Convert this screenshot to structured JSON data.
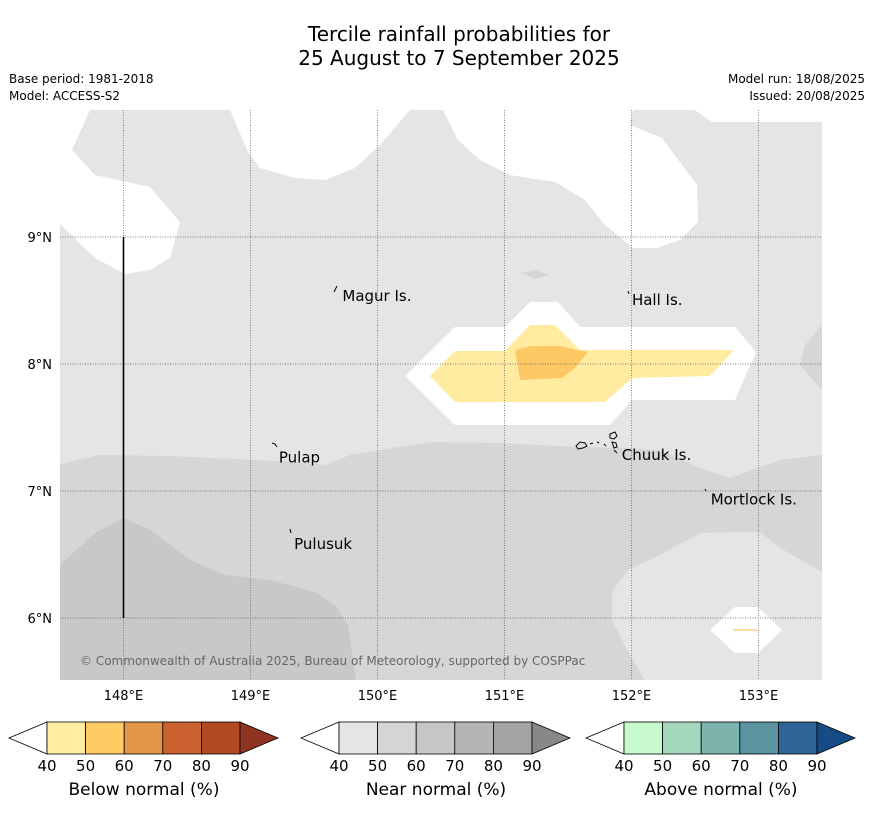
{
  "title": {
    "line1": "Tercile rainfall probabilities for",
    "line2": "25 August to 7 September 2025"
  },
  "info_left": {
    "base_period": "Base period: 1981-2018",
    "model": "Model: ACCESS-S2"
  },
  "info_right": {
    "model_run": "Model run: 18/08/2025",
    "issued": "Issued: 20/08/2025"
  },
  "map": {
    "lon_ticks": [
      "148°E",
      "149°E",
      "150°E",
      "151°E",
      "152°E",
      "153°E"
    ],
    "lat_ticks": [
      "9°N",
      "8°N",
      "7°N",
      "6°N"
    ],
    "places": [
      {
        "name": "Magur Is.",
        "lon": 149.7,
        "lat": 8.55
      },
      {
        "name": "Hall Is.",
        "lon": 151.98,
        "lat": 8.52
      },
      {
        "name": "Pulap",
        "lon": 149.2,
        "lat": 7.28
      },
      {
        "name": "Chuuk Is.",
        "lon": 151.9,
        "lat": 7.3
      },
      {
        "name": "Mortlock Is.",
        "lon": 152.6,
        "lat": 6.95
      },
      {
        "name": "Pulusuk",
        "lon": 149.32,
        "lat": 6.6
      }
    ],
    "copyright": "© Commonwealth of Australia 2025, Bureau of Meteorology, supported by COSPPac",
    "colors": {
      "near_40_50": "#e5e5e5",
      "near_50_60": "#d6d6d6",
      "near_60_70": "#c8c8c8",
      "below_40_50": "#ffeca0",
      "below_50_60": "#fec964",
      "grid": "#555555"
    }
  },
  "colorbars": [
    {
      "name": "Below normal (%)",
      "ticks": [
        "40",
        "50",
        "60",
        "70",
        "80",
        "90"
      ],
      "colors": [
        "#ffeda0",
        "#fecb65",
        "#e39645",
        "#cd6231",
        "#b14925",
        "#8f3420"
      ]
    },
    {
      "name": "Near normal (%)",
      "ticks": [
        "40",
        "50",
        "60",
        "70",
        "80",
        "90"
      ],
      "colors": [
        "#e5e5e5",
        "#d5d5d5",
        "#c6c6c6",
        "#b5b5b5",
        "#a3a3a3",
        "#888888"
      ]
    },
    {
      "name": "Above normal (%)",
      "ticks": [
        "40",
        "50",
        "60",
        "70",
        "80",
        "90"
      ],
      "colors": [
        "#c7fbcd",
        "#a3d8be",
        "#7db3ad",
        "#5b93a0",
        "#2e6498",
        "#164b86"
      ]
    }
  ]
}
